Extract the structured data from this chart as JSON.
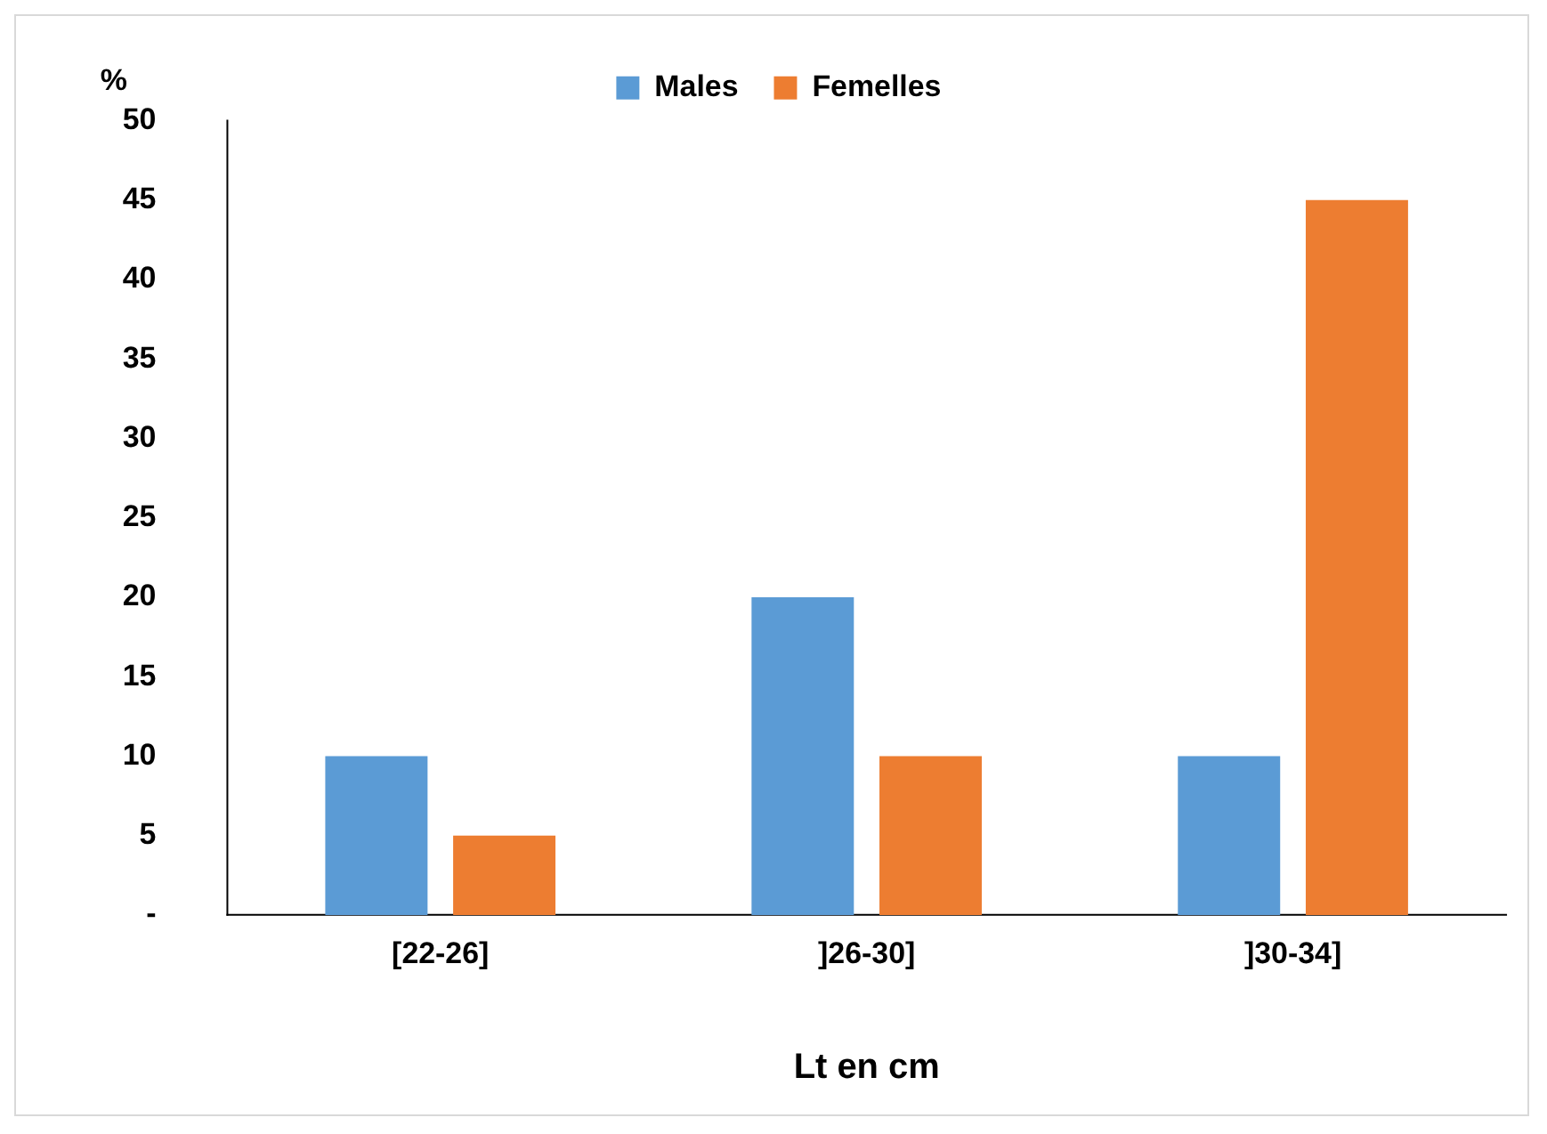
{
  "chart_data": {
    "type": "bar",
    "ylabel": "%",
    "xlabel": "Lt en cm",
    "categories": [
      "[22-26]",
      "]26-30]",
      "]30-34]"
    ],
    "series": [
      {
        "name": "Males",
        "color": "#5b9bd5",
        "values": [
          10,
          20,
          10
        ]
      },
      {
        "name": "Femelles",
        "color": "#ed7d31",
        "values": [
          5,
          10,
          45
        ]
      }
    ],
    "ylim": [
      0,
      50
    ],
    "yticks": [
      {
        "value": 0,
        "label": "-"
      },
      5,
      10,
      15,
      20,
      25,
      30,
      35,
      40,
      45,
      50
    ],
    "grid": false,
    "legend": "top"
  }
}
